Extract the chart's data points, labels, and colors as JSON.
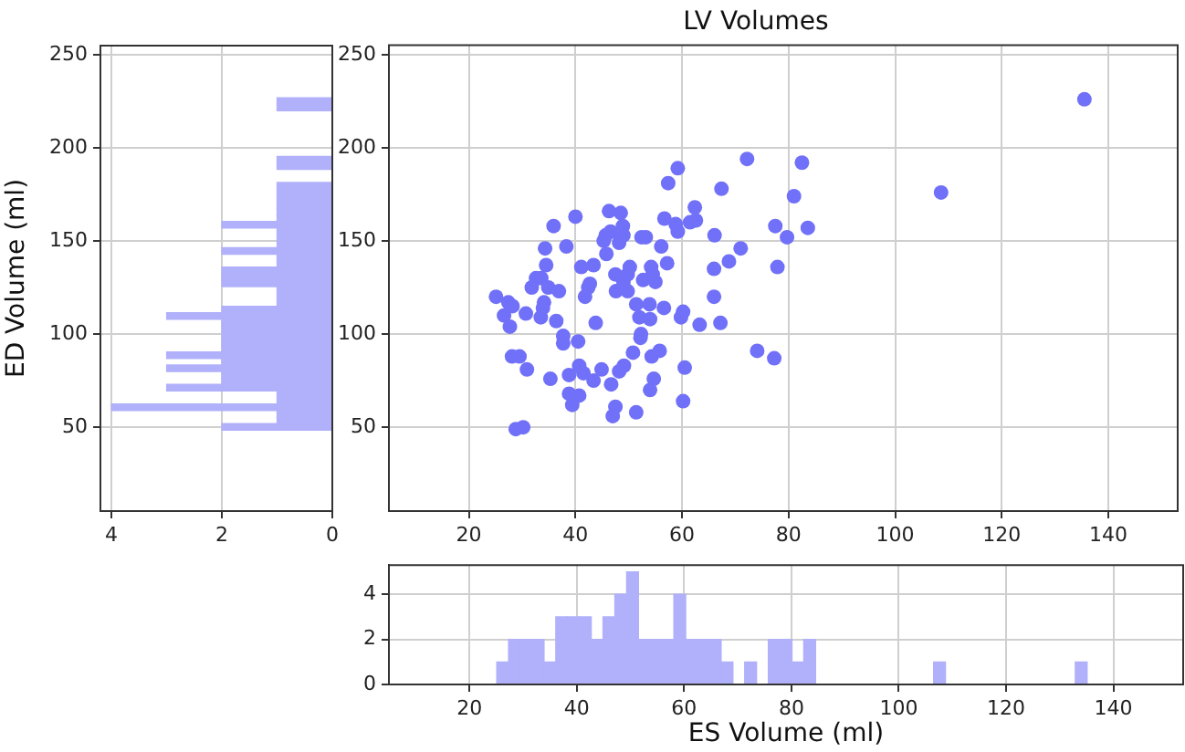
{
  "chart_data": [
    {
      "type": "histogram",
      "orientation": "horizontal",
      "ylabel": "ED Volume (ml)",
      "color": "#b0b0fb",
      "grid": true,
      "xlim": [
        4.2,
        0
      ],
      "xticks": [
        4,
        2,
        0
      ],
      "ylim": [
        5,
        255
      ],
      "yticks": [
        50,
        100,
        150,
        200,
        250
      ],
      "bins": [
        48.5,
        52,
        55.5,
        59,
        62.5,
        66,
        69.5,
        73,
        76.5,
        80,
        83.5,
        87,
        90.5,
        94,
        97.5,
        101,
        104.5,
        108,
        111.5,
        115,
        118.5,
        122,
        125.5,
        129,
        132.5,
        136,
        139.5,
        143,
        146.5,
        150,
        153.5,
        157,
        160.5,
        164,
        167.5,
        171,
        174.5,
        178,
        181.5,
        185,
        188.5,
        192,
        195.5,
        199,
        202.5,
        206,
        209.5,
        213,
        216.5,
        220,
        223.5,
        227
      ],
      "values": [
        2,
        1,
        1,
        4,
        1,
        1,
        3,
        2,
        2,
        3,
        2,
        3,
        2,
        2,
        2,
        2,
        2,
        3,
        2,
        1,
        1,
        1,
        2,
        2,
        2,
        1,
        1,
        2,
        1,
        1,
        1,
        2,
        1,
        1,
        1,
        1,
        1,
        1,
        0,
        0,
        1,
        1,
        0,
        0,
        0,
        0,
        0,
        0,
        0,
        1,
        1
      ]
    },
    {
      "type": "scatter",
      "title": "LV Volumes",
      "color": "#7070f8",
      "marker": "circle",
      "grid": true,
      "xlim": [
        5,
        153
      ],
      "xticks": [
        20,
        40,
        60,
        80,
        100,
        120,
        140
      ],
      "ylim": [
        5,
        255
      ],
      "yticks": [
        50,
        100,
        150,
        200,
        250
      ],
      "x": [
        25.1,
        26.6,
        27.4,
        27.7,
        28.2,
        28.1,
        29.5,
        28.8,
        30.2,
        30.7,
        30.9,
        31.8,
        32.6,
        33.6,
        33.5,
        33.9,
        34.1,
        34.3,
        34.5,
        34.9,
        35.9,
        35.3,
        36.4,
        36.9,
        37.7,
        37.7,
        38.3,
        38.8,
        38.8,
        39.4,
        40,
        40.5,
        40.7,
        40.7,
        41.1,
        41.5,
        41.8,
        42.4,
        42.7,
        43.4,
        43.8,
        43.4,
        44.9,
        45.3,
        45.8,
        45.7,
        46.3,
        46.6,
        46.7,
        47,
        47.5,
        47.5,
        47.6,
        48.2,
        48.5,
        48.9,
        49,
        49,
        48.2,
        49.1,
        49.8,
        49.8,
        50.2,
        50.8,
        51.4,
        51.4,
        52,
        52.2,
        52.4,
        53.2,
        52.7,
        53.9,
        54,
        54.2,
        54.5,
        54.3,
        54,
        54.7,
        55,
        55.8,
        56.1,
        56.7,
        56.6,
        57.2,
        57.4,
        58.8,
        59.2,
        59.2,
        59.8,
        60.2,
        60.5,
        60.2,
        61.5,
        62.4,
        62.6,
        63.3,
        66.1,
        66,
        66,
        67.2,
        67.4,
        68.8,
        71,
        72.2,
        74.1,
        77.3,
        77.5,
        77.9,
        79.7,
        81,
        82.5,
        83.6,
        108.6,
        135.5,
        52.3
      ],
      "values": [
        120,
        110,
        117,
        104,
        115,
        88,
        88,
        49,
        50,
        111,
        81,
        125,
        130,
        130,
        109,
        114,
        117,
        146,
        137,
        125,
        158,
        76,
        107,
        123,
        99,
        95,
        147,
        78,
        68,
        62,
        163,
        96,
        67,
        83,
        136,
        79,
        120,
        125,
        127,
        137,
        106,
        75,
        81,
        150,
        143,
        153,
        166,
        155,
        73,
        56,
        61,
        132,
        123,
        149,
        165,
        158,
        153,
        128,
        80,
        83,
        132,
        123,
        136,
        90,
        116,
        58,
        109,
        98,
        152,
        152,
        129,
        116,
        108,
        136,
        132,
        88,
        70,
        76,
        128,
        91,
        147,
        162,
        114,
        138,
        181,
        159,
        189,
        155,
        109,
        112,
        82,
        64,
        160,
        168,
        161,
        105,
        153,
        135,
        120,
        106,
        178,
        139,
        146,
        194,
        91,
        87,
        158,
        136,
        152,
        174,
        192,
        157,
        176,
        226,
        100
      ]
    },
    {
      "type": "histogram",
      "xlabel": "ES Volume (ml)",
      "color": "#b0b0fb",
      "grid": true,
      "xlim": [
        5,
        153
      ],
      "xticks": [
        20,
        40,
        60,
        80,
        100,
        120,
        140
      ],
      "ylim": [
        0,
        5.3
      ],
      "yticks": [
        0,
        2,
        4
      ],
      "bins": [
        25.1,
        27.3,
        29.5,
        31.7,
        33.9,
        36.1,
        38.3,
        40.5,
        42.7,
        44.9,
        47.1,
        49.3,
        51.5,
        53.7,
        55.9,
        58.1,
        60.3,
        62.5,
        64.7,
        66.9,
        69.1,
        71.3,
        73.5,
        75.7,
        77.9,
        80.1,
        82.3,
        84.5,
        86.7,
        88.9,
        91.1,
        93.3,
        95.5,
        97.7,
        99.9,
        102.1,
        104.3,
        106.5,
        108.7,
        110.9,
        113.1,
        115.3,
        117.5,
        119.7,
        121.9,
        124.1,
        126.3,
        128.5,
        130.7,
        132.9,
        135.1
      ],
      "values": [
        1,
        2,
        2,
        2,
        1,
        3,
        3,
        3,
        2,
        3,
        4,
        5,
        2,
        2,
        2,
        4,
        2,
        2,
        2,
        1,
        0,
        1,
        0,
        2,
        2,
        1,
        2,
        0,
        0,
        0,
        0,
        0,
        0,
        0,
        0,
        0,
        0,
        1,
        0,
        0,
        0,
        0,
        0,
        0,
        0,
        0,
        0,
        0,
        0,
        1
      ]
    }
  ]
}
